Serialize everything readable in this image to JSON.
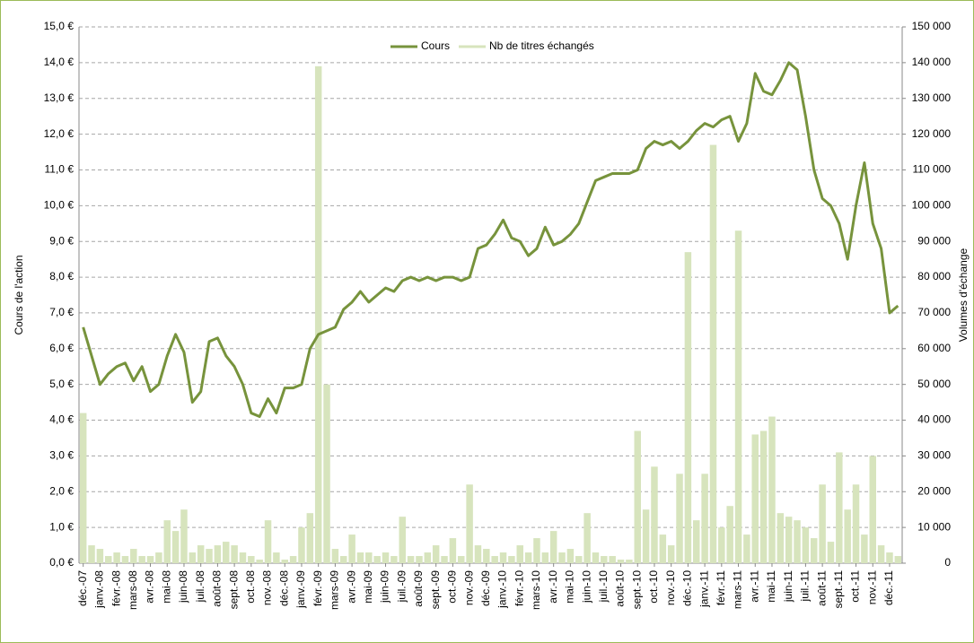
{
  "chart_data": {
    "type": "line_bar",
    "y_label": "Cours de l'action",
    "y2_label": "Volumes d'échange",
    "categories": [
      "déc.-07",
      null,
      "janv.-08",
      null,
      "févr.-08",
      null,
      "mars-08",
      null,
      "avr.-08",
      null,
      "mai-08",
      null,
      "juin-08",
      null,
      "juil.-08",
      null,
      "août-08",
      null,
      "sept.-08",
      null,
      "oct.-08",
      null,
      "nov.-08",
      null,
      "déc.-08",
      null,
      "janv.-09",
      null,
      "févr.-09",
      null,
      "mars-09",
      null,
      "avr.-09",
      null,
      "mai-09",
      null,
      "juin-09",
      null,
      "juil.-09",
      null,
      "août-09",
      null,
      "sept.-09",
      null,
      "oct.-09",
      null,
      "nov.-09",
      null,
      "déc.-09",
      null,
      "janv.-10",
      null,
      "févr.-10",
      null,
      "mars-10",
      null,
      "avr.-10",
      null,
      "mai-10",
      null,
      "juin-10",
      null,
      "juil.-10",
      null,
      "août-10",
      null,
      "sept.-10",
      null,
      "oct.-10",
      null,
      "nov.-10",
      null,
      "déc.-10",
      null,
      "janv.-11",
      null,
      "févr.-11",
      null,
      "mars-11",
      null,
      "avr.-11",
      null,
      "mai-11",
      null,
      "juin-11",
      null,
      "juil.-11",
      null,
      "août-11",
      null,
      "sept.-11",
      null,
      "oct.-11",
      null,
      "nov.-11",
      null,
      "déc.-11",
      null
    ],
    "series": [
      {
        "name": "Cours",
        "color": "#77933c",
        "kind": "line",
        "values": [
          6.6,
          5.8,
          5.0,
          5.3,
          5.5,
          5.6,
          5.1,
          5.5,
          4.8,
          5.0,
          5.8,
          6.4,
          5.9,
          4.5,
          4.8,
          6.2,
          6.3,
          5.8,
          5.5,
          5.0,
          4.2,
          4.1,
          4.6,
          4.2,
          4.9,
          4.9,
          5.0,
          6.0,
          6.4,
          6.5,
          6.6,
          7.1,
          7.3,
          7.6,
          7.3,
          7.5,
          7.7,
          7.6,
          7.9,
          8.0,
          7.9,
          8.0,
          7.9,
          8.0,
          8.0,
          7.9,
          8.0,
          8.8,
          8.9,
          9.2,
          9.6,
          9.1,
          9.0,
          8.6,
          8.8,
          9.4,
          8.9,
          9.0,
          9.2,
          9.5,
          10.1,
          10.7,
          10.8,
          10.9,
          10.9,
          10.9,
          11.0,
          11.6,
          11.8,
          11.7,
          11.8,
          11.6,
          11.8,
          12.1,
          12.3,
          12.2,
          12.4,
          12.5,
          11.8,
          12.3,
          13.7,
          13.2,
          13.1,
          13.5,
          14.0,
          13.8,
          12.5,
          11.0,
          10.2,
          10.0,
          9.5,
          8.5,
          10.0,
          11.2,
          9.5,
          8.8,
          7.0,
          7.2
        ]
      },
      {
        "name": "Nb de titres échangés",
        "color": "#d7e4bd",
        "kind": "bar",
        "axis": "y2",
        "values": [
          42000,
          5000,
          4000,
          2000,
          3000,
          2000,
          4000,
          2000,
          2000,
          3000,
          12000,
          9000,
          15000,
          3000,
          5000,
          4000,
          5000,
          6000,
          5000,
          3000,
          2000,
          1000,
          12000,
          3000,
          1000,
          2000,
          10000,
          14000,
          139000,
          50000,
          4000,
          2000,
          8000,
          3000,
          3000,
          2000,
          3000,
          2000,
          13000,
          2000,
          2000,
          3000,
          5000,
          2000,
          7000,
          2000,
          22000,
          5000,
          4000,
          2000,
          3000,
          2000,
          5000,
          3000,
          7000,
          3000,
          9000,
          3000,
          4000,
          2000,
          14000,
          3000,
          2000,
          2000,
          1000,
          1000,
          37000,
          15000,
          27000,
          8000,
          5000,
          25000,
          87000,
          12000,
          25000,
          117000,
          10000,
          16000,
          93000,
          8000,
          36000,
          37000,
          41000,
          14000,
          13000,
          12000,
          10000,
          7000,
          22000,
          6000,
          31000,
          15000,
          22000,
          8000,
          30000,
          5000,
          3000,
          2000
        ]
      }
    ],
    "ylim": [
      0,
      15
    ],
    "yticks": [
      {
        "value": 0,
        "label": "0,0 €"
      },
      {
        "value": 1,
        "label": "1,0 €"
      },
      {
        "value": 2,
        "label": "2,0 €"
      },
      {
        "value": 3,
        "label": "3,0 €"
      },
      {
        "value": 4,
        "label": "4,0 €"
      },
      {
        "value": 5,
        "label": "5,0 €"
      },
      {
        "value": 6,
        "label": "6,0 €"
      },
      {
        "value": 7,
        "label": "7,0 €"
      },
      {
        "value": 8,
        "label": "8,0 €"
      },
      {
        "value": 9,
        "label": "9,0 €"
      },
      {
        "value": 10,
        "label": "10,0 €"
      },
      {
        "value": 11,
        "label": "11,0 €"
      },
      {
        "value": 12,
        "label": "12,0 €"
      },
      {
        "value": 13,
        "label": "13,0 €"
      },
      {
        "value": 14,
        "label": "14,0 €"
      },
      {
        "value": 15,
        "label": "15,0 €"
      }
    ],
    "y2lim": [
      0,
      150000
    ],
    "y2ticks": [
      0,
      {
        "value": 10000,
        "label": "10 000"
      },
      {
        "value": 20000,
        "label": "20 000"
      },
      {
        "value": 30000,
        "label": "30 000"
      },
      {
        "value": 40000,
        "label": "40 000"
      },
      {
        "value": 50000,
        "label": "50 000"
      },
      {
        "value": 60000,
        "label": "60 000"
      },
      {
        "value": 70000,
        "label": "70 000"
      },
      {
        "value": 80000,
        "label": "80 000"
      },
      {
        "value": 90000,
        "label": "90 000"
      },
      {
        "value": 100000,
        "label": "100 000"
      },
      {
        "value": 110000,
        "label": "110 000"
      },
      {
        "value": 120000,
        "label": "120 000"
      },
      {
        "value": 130000,
        "label": "130 000"
      },
      {
        "value": 140000,
        "label": "140 000"
      },
      {
        "value": 150000,
        "label": "150 000"
      }
    ],
    "grid": true,
    "legend": "top"
  }
}
